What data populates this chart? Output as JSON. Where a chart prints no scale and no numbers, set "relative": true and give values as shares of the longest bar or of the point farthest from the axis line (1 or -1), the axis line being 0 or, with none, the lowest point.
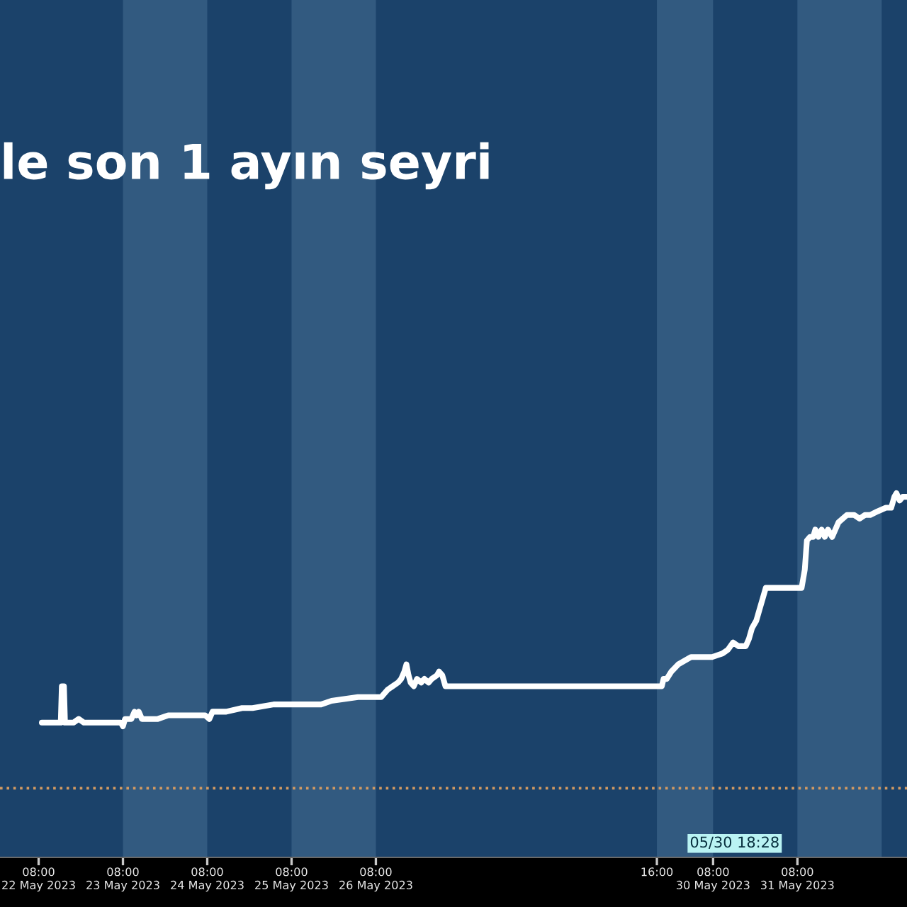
{
  "chart_data": {
    "type": "line",
    "title": "le son 1 ayın seyri",
    "relative": true,
    "tick_labels": "x",
    "color": "#ffffff",
    "x": [
      "2023-05-22T08:54",
      "2023-05-22T11:54",
      "2023-05-22T13:24",
      "2023-05-22T14:18",
      "2023-05-22T14:36",
      "2023-05-22T15:12",
      "2023-05-22T15:30",
      "2023-05-22T17:54",
      "2023-05-22T19:24",
      "2023-05-22T20:54",
      "2023-05-23T02:54",
      "2023-05-23T07:24",
      "2023-05-23T08:00",
      "2023-05-23T08:36",
      "2023-05-23T10:24",
      "2023-05-23T11:18",
      "2023-05-23T11:54",
      "2023-05-23T12:30",
      "2023-05-23T13:24",
      "2023-05-23T14:54",
      "2023-05-23T17:54",
      "2023-05-23T20:54",
      "2023-05-24T02:54",
      "2023-05-24T07:24",
      "2023-05-24T08:36",
      "2023-05-24T09:30",
      "2023-05-24T13:24",
      "2023-05-24T17:54",
      "2023-05-24T20:54",
      "2023-05-25T02:54",
      "2023-05-25T09:48",
      "2023-05-25T14:18",
      "2023-05-25T16:24",
      "2023-05-25T19:24",
      "2023-05-26T02:54",
      "2023-05-26T09:30",
      "2023-05-26T11:18",
      "2023-05-26T12:48",
      "2023-05-26T14:18",
      "2023-05-26T15:12",
      "2023-05-26T16:06",
      "2023-05-26T16:42",
      "2023-05-26T17:18",
      "2023-05-26T17:54",
      "2023-05-26T18:48",
      "2023-05-26T19:42",
      "2023-05-26T20:54",
      "2023-05-26T21:48",
      "2023-05-26T23:00",
      "2023-05-26T23:54",
      "2023-05-27T01:24",
      "2023-05-27T02:00",
      "2023-05-27T02:54",
      "2023-05-27T03:48",
      "2023-05-27T05:18",
      "2023-05-27T07:24",
      "2023-05-29T17:24",
      "2023-05-29T17:54",
      "2023-05-29T18:48",
      "2023-05-29T20:06",
      "2023-05-29T22:06",
      "2023-05-30T01:42",
      "2023-05-30T03:36",
      "2023-05-30T05:30",
      "2023-05-30T07:42",
      "2023-05-30T10:42",
      "2023-05-30T12:12",
      "2023-05-30T13:42",
      "2023-05-30T15:12",
      "2023-05-30T17:18",
      "2023-05-30T18:12",
      "2023-05-30T19:06",
      "2023-05-30T20:18",
      "2023-05-30T21:12",
      "2023-05-30T22:06",
      "2023-05-30T23:00",
      "2023-05-31T00:12",
      "2023-05-31T04:42",
      "2023-05-31T09:12",
      "2023-05-31T10:06",
      "2023-05-31T10:42",
      "2023-05-31T11:36",
      "2023-05-31T12:30",
      "2023-05-31T13:06",
      "2023-05-31T14:00",
      "2023-05-31T14:54",
      "2023-05-31T15:48",
      "2023-05-31T16:42",
      "2023-05-31T17:54",
      "2023-05-31T19:42",
      "2023-05-31T22:06",
      "2023-06-01T00:12",
      "2023-06-01T01:42",
      "2023-06-01T03:12",
      "2023-06-01T04:42",
      "2023-06-01T06:48",
      "2023-06-01T09:12",
      "2023-06-01T10:42",
      "2023-06-01T11:36",
      "2023-06-01T12:12",
      "2023-06-01T13:06",
      "2023-06-01T14:00",
      "2023-06-01T15:12"
    ],
    "values": [
      0.37,
      0.37,
      0.37,
      0.37,
      0.47,
      0.47,
      0.37,
      0.37,
      0.38,
      0.37,
      0.37,
      0.37,
      0.36,
      0.38,
      0.38,
      0.4,
      0.39,
      0.4,
      0.38,
      0.38,
      0.38,
      0.39,
      0.39,
      0.39,
      0.38,
      0.4,
      0.4,
      0.41,
      0.41,
      0.42,
      0.42,
      0.42,
      0.42,
      0.43,
      0.44,
      0.44,
      0.46,
      0.47,
      0.48,
      0.49,
      0.51,
      0.53,
      0.5,
      0.48,
      0.47,
      0.49,
      0.48,
      0.49,
      0.48,
      0.49,
      0.5,
      0.51,
      0.5,
      0.47,
      0.47,
      0.47,
      0.47,
      0.49,
      0.49,
      0.51,
      0.53,
      0.55,
      0.55,
      0.55,
      0.55,
      0.56,
      0.57,
      0.59,
      0.58,
      0.58,
      0.6,
      0.63,
      0.65,
      0.68,
      0.71,
      0.74,
      0.74,
      0.74,
      0.74,
      0.79,
      0.87,
      0.88,
      0.88,
      0.9,
      0.88,
      0.9,
      0.88,
      0.9,
      0.88,
      0.92,
      0.94,
      0.94,
      0.93,
      0.94,
      0.94,
      0.95,
      0.96,
      0.96,
      0.99,
      1.0,
      0.98,
      0.99,
      0.99
    ],
    "xlim": [
      "2023-05-21T21:00",
      "2023-06-01T15:12"
    ],
    "xticks": [
      {
        "value": "2023-05-22T08:00",
        "label": "08:00\n22 May 2023"
      },
      {
        "value": "2023-05-23T08:00",
        "label": "08:00\n23 May 2023"
      },
      {
        "value": "2023-05-24T08:00",
        "label": "08:00\n24 May 2023"
      },
      {
        "value": "2023-05-25T08:00",
        "label": "08:00\n25 May 2023"
      },
      {
        "value": "2023-05-26T08:00",
        "label": "08:00\n26 May 2023"
      },
      {
        "value": "2023-05-29T16:00",
        "label": "16:00"
      },
      {
        "value": "2023-05-30T08:00",
        "label": "08:00\n30 May 2023"
      },
      {
        "value": "2023-05-31T08:00",
        "label": "08:00\n31 May 2023"
      }
    ],
    "bands": [
      {
        "axis": "x",
        "from": "2023-05-23T08:00",
        "to": "2023-05-24T08:00",
        "color": "#325a80"
      },
      {
        "axis": "x",
        "from": "2023-05-25T08:00",
        "to": "2023-05-26T08:00",
        "color": "#325a80"
      },
      {
        "axis": "x",
        "from": "2023-05-29T16:00",
        "to": "2023-05-30T08:00",
        "color": "#325a80"
      },
      {
        "axis": "x",
        "from": "2023-05-31T08:00",
        "to": "2023-06-01T08:00",
        "color": "#325a80"
      }
    ],
    "ref_lines": [
      {
        "axis": "y",
        "value": 0.19,
        "color": "#d29a62",
        "line_style": "dotted"
      }
    ],
    "annotations": [
      "05/30 18:28"
    ]
  }
}
